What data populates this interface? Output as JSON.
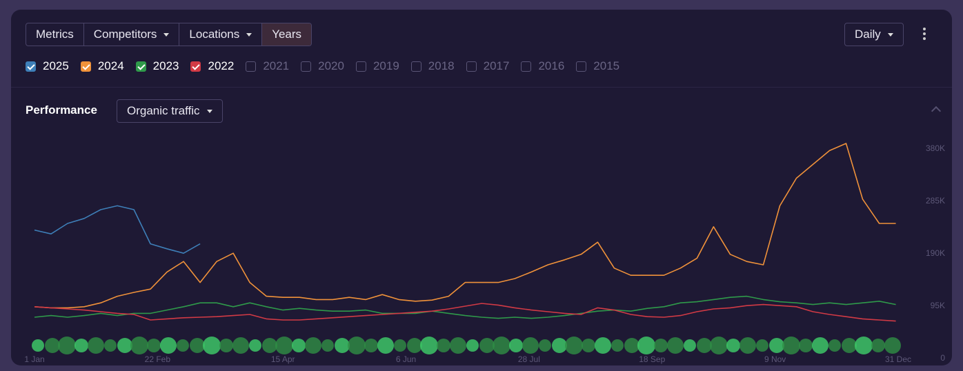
{
  "tabs": [
    "Metrics",
    "Competitors",
    "Locations",
    "Years"
  ],
  "active_tab": 3,
  "dropdown_tabs": [
    1,
    2
  ],
  "interval": "Daily",
  "section": "Performance",
  "metric": "Organic traffic",
  "other_years": [
    "2021",
    "2020",
    "2019",
    "2018",
    "2017",
    "2016",
    "2015"
  ],
  "chart_data": {
    "type": "line",
    "legend": "top-left",
    "grid": false,
    "x": [
      0,
      7,
      14,
      21,
      28,
      35,
      42,
      49,
      56,
      63,
      70,
      77,
      84,
      91,
      98,
      105,
      112,
      119,
      126,
      133,
      140,
      147,
      154,
      161,
      168,
      175,
      182,
      189,
      196,
      203,
      210,
      217,
      224,
      231,
      238,
      245,
      252,
      259,
      266,
      273,
      280,
      287,
      294,
      301,
      308,
      315,
      322,
      329,
      336,
      343,
      350,
      357,
      364
    ],
    "xlim": [
      0,
      365
    ],
    "xticks": [
      {
        "value": 0,
        "label": "1 Jan"
      },
      {
        "value": 52,
        "label": "22 Feb"
      },
      {
        "value": 105,
        "label": "15 Apr"
      },
      {
        "value": 157,
        "label": "6 Jun"
      },
      {
        "value": 209,
        "label": "28 Jul"
      },
      {
        "value": 261,
        "label": "18 Sep"
      },
      {
        "value": 313,
        "label": "9 Nov"
      },
      {
        "value": 365,
        "label": "31 Dec"
      }
    ],
    "ylim": [
      0,
      400000
    ],
    "yticks": [
      0,
      {
        "value": 95000,
        "label": "95K"
      },
      {
        "value": 190000,
        "label": "190K"
      },
      {
        "value": 285000,
        "label": "285K"
      },
      {
        "value": 380000,
        "label": "380K"
      }
    ],
    "series": [
      {
        "name": "2025",
        "color": "#3e7fb8",
        "values": [
          233000,
          226000,
          245000,
          254000,
          270000,
          277000,
          270000,
          208000,
          199000,
          191000,
          208000,
          null,
          null,
          null,
          null,
          null,
          null,
          null,
          null,
          null,
          null,
          null,
          null,
          null,
          null,
          null,
          null,
          null,
          null,
          null,
          null,
          null,
          null,
          null,
          null,
          null,
          null,
          null,
          null,
          null,
          null,
          null,
          null,
          null,
          null,
          null,
          null,
          null,
          null,
          null,
          null,
          null,
          null
        ]
      },
      {
        "name": "2024",
        "color": "#f0923a",
        "values": [
          94000,
          92000,
          92000,
          94000,
          101000,
          113000,
          120000,
          126000,
          157000,
          176000,
          138000,
          176000,
          191000,
          138000,
          113000,
          111000,
          111000,
          107000,
          107000,
          111000,
          107000,
          116000,
          107000,
          104000,
          106000,
          113000,
          138000,
          138000,
          138000,
          145000,
          157000,
          170000,
          179000,
          189000,
          211000,
          164000,
          151000,
          151000,
          151000,
          164000,
          182000,
          239000,
          189000,
          176000,
          170000,
          277000,
          327000,
          352000,
          377000,
          390000,
          289000,
          245000,
          245000
        ]
      },
      {
        "name": "2023",
        "color": "#2f9a4a",
        "values": [
          75000,
          78000,
          75000,
          78000,
          82000,
          78000,
          82000,
          82000,
          88000,
          94000,
          101000,
          101000,
          94000,
          101000,
          94000,
          88000,
          91000,
          88000,
          86000,
          86000,
          88000,
          82000,
          82000,
          82000,
          86000,
          82000,
          78000,
          75000,
          73000,
          75000,
          73000,
          75000,
          78000,
          82000,
          86000,
          88000,
          86000,
          91000,
          94000,
          101000,
          103000,
          107000,
          111000,
          113000,
          107000,
          103000,
          101000,
          98000,
          101000,
          98000,
          101000,
          104000,
          98000
        ]
      },
      {
        "name": "2022",
        "color": "#d23a45",
        "values": [
          94000,
          92000,
          90000,
          88000,
          85000,
          82000,
          80000,
          70000,
          72000,
          74000,
          75000,
          76000,
          78000,
          80000,
          72000,
          70000,
          70000,
          72000,
          74000,
          76000,
          78000,
          80000,
          82000,
          84000,
          86000,
          90000,
          95000,
          100000,
          97000,
          92000,
          88000,
          85000,
          82000,
          80000,
          92000,
          88000,
          80000,
          76000,
          75000,
          78000,
          85000,
          90000,
          92000,
          96000,
          98000,
          96000,
          94000,
          85000,
          80000,
          76000,
          72000,
          70000,
          68000
        ]
      }
    ]
  }
}
